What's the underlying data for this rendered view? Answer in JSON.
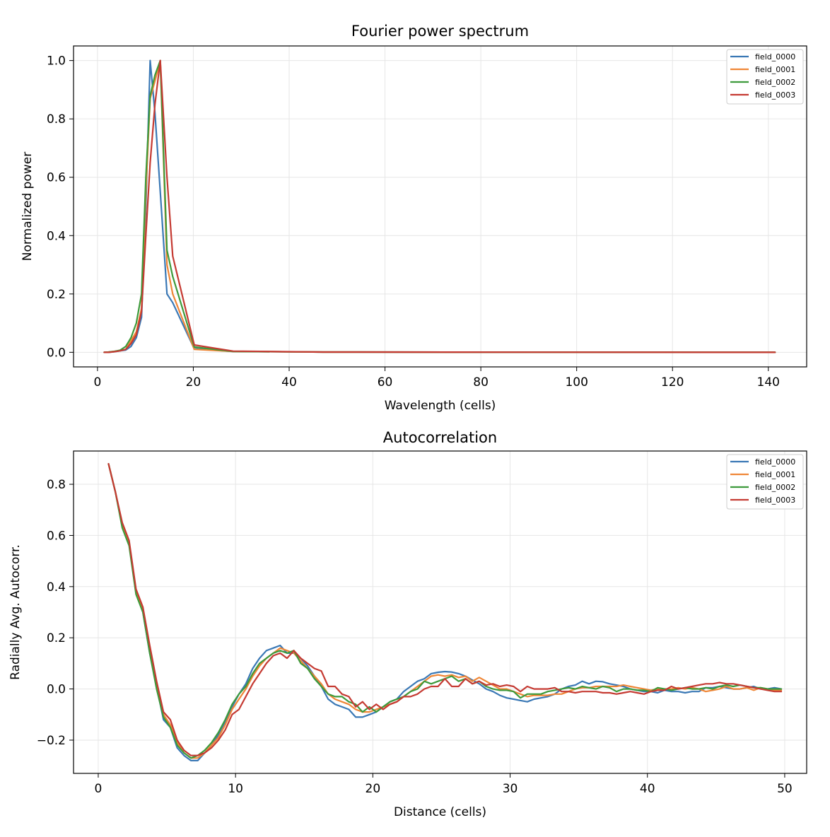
{
  "chart_data": [
    {
      "type": "line",
      "title": "Fourier power spectrum",
      "xlabel": "Wavelength (cells)",
      "ylabel": "Normalized power",
      "xlim": [
        -5,
        148
      ],
      "ylim": [
        -0.05,
        1.05
      ],
      "xticks": [
        0,
        20,
        40,
        60,
        80,
        100,
        120,
        140
      ],
      "yticks": [
        0.0,
        0.2,
        0.4,
        0.6,
        0.8,
        1.0
      ],
      "ytick_labels": [
        "0.0",
        "0.2",
        "0.4",
        "0.6",
        "0.8",
        "1.0"
      ],
      "grid": true,
      "legend_position": "top-right",
      "x": [
        1.4,
        2.3,
        3.5,
        4.7,
        5.9,
        7.0,
        8.1,
        9.2,
        10.1,
        11.0,
        12.0,
        13.1,
        14.5,
        15.7,
        20.2,
        28.3,
        47.1,
        141.4
      ],
      "series": [
        {
          "name": "field_0000",
          "color": "#3a78b5",
          "values": [
            0.0,
            0.0,
            0.002,
            0.005,
            0.008,
            0.02,
            0.05,
            0.12,
            0.5,
            1.0,
            0.82,
            0.55,
            0.2,
            0.17,
            0.012,
            0.003,
            0.001,
            0.0
          ]
        },
        {
          "name": "field_0001",
          "color": "#ef8636",
          "values": [
            0.0,
            0.001,
            0.003,
            0.006,
            0.01,
            0.04,
            0.07,
            0.15,
            0.55,
            0.87,
            0.93,
            1.0,
            0.3,
            0.2,
            0.01,
            0.003,
            0.001,
            0.0
          ]
        },
        {
          "name": "field_0002",
          "color": "#3d9a3b",
          "values": [
            0.0,
            0.001,
            0.003,
            0.007,
            0.02,
            0.05,
            0.1,
            0.2,
            0.6,
            0.88,
            0.95,
            1.0,
            0.35,
            0.26,
            0.018,
            0.003,
            0.001,
            0.0
          ]
        },
        {
          "name": "field_0003",
          "color": "#c53a32",
          "values": [
            0.0,
            0.0,
            0.002,
            0.005,
            0.01,
            0.03,
            0.06,
            0.14,
            0.4,
            0.65,
            0.85,
            1.0,
            0.6,
            0.33,
            0.025,
            0.004,
            0.001,
            0.0
          ]
        }
      ]
    },
    {
      "type": "line",
      "title": "Autocorrelation",
      "xlabel": "Distance (cells)",
      "ylabel": "Radially Avg. Autocorr.",
      "xlim": [
        -1.8,
        51.6
      ],
      "ylim": [
        -0.33,
        0.93
      ],
      "xticks": [
        0,
        10,
        20,
        30,
        40,
        50
      ],
      "yticks": [
        -0.2,
        0.0,
        0.2,
        0.4,
        0.6,
        0.8
      ],
      "ytick_labels": [
        "−0.2",
        "0.0",
        "0.2",
        "0.4",
        "0.6",
        "0.8"
      ],
      "grid": true,
      "legend_position": "top-right",
      "x": [
        0.75,
        1.25,
        1.75,
        2.25,
        2.75,
        3.25,
        3.75,
        4.25,
        4.75,
        5.25,
        5.75,
        6.25,
        6.75,
        7.25,
        7.75,
        8.25,
        8.75,
        9.25,
        9.75,
        10.25,
        10.75,
        11.25,
        11.75,
        12.25,
        12.75,
        13.25,
        13.75,
        14.25,
        14.75,
        15.25,
        15.75,
        16.25,
        16.75,
        17.25,
        17.75,
        18.25,
        18.75,
        19.25,
        19.75,
        20.25,
        20.75,
        21.25,
        21.75,
        22.25,
        22.75,
        23.25,
        23.75,
        24.25,
        24.75,
        25.25,
        25.75,
        26.25,
        26.75,
        27.25,
        27.75,
        28.25,
        28.75,
        29.25,
        29.75,
        30.25,
        30.75,
        31.25,
        31.75,
        32.25,
        32.75,
        33.25,
        33.75,
        34.25,
        34.75,
        35.25,
        35.75,
        36.25,
        36.75,
        37.25,
        37.75,
        38.25,
        38.75,
        39.25,
        39.75,
        40.25,
        40.75,
        41.25,
        41.75,
        42.25,
        42.75,
        43.25,
        43.75,
        44.25,
        44.75,
        45.25,
        45.75,
        46.25,
        46.75,
        47.25,
        47.75,
        48.25,
        48.75,
        49.25,
        49.75
      ],
      "series": [
        {
          "name": "field_0000",
          "color": "#3a78b5",
          "values": [
            0.88,
            0.77,
            0.64,
            0.57,
            0.38,
            0.3,
            0.14,
            0.01,
            -0.12,
            -0.15,
            -0.23,
            -0.26,
            -0.28,
            -0.28,
            -0.25,
            -0.22,
            -0.18,
            -0.13,
            -0.07,
            -0.02,
            0.02,
            0.08,
            0.12,
            0.15,
            0.16,
            0.17,
            0.14,
            0.14,
            0.12,
            0.09,
            0.05,
            0.01,
            -0.04,
            -0.06,
            -0.07,
            -0.08,
            -0.11,
            -0.11,
            -0.1,
            -0.09,
            -0.07,
            -0.05,
            -0.04,
            -0.01,
            0.01,
            0.03,
            0.04,
            0.06,
            0.065,
            0.068,
            0.066,
            0.06,
            0.05,
            0.035,
            0.02,
            0.0,
            -0.01,
            -0.025,
            -0.035,
            -0.04,
            -0.045,
            -0.05,
            -0.04,
            -0.035,
            -0.03,
            -0.02,
            0.0,
            0.01,
            0.015,
            0.03,
            0.02,
            0.03,
            0.028,
            0.02,
            0.015,
            0.01,
            0.0,
            -0.005,
            -0.01,
            -0.01,
            -0.015,
            -0.005,
            -0.01,
            -0.01,
            -0.015,
            -0.01,
            -0.01,
            0.005,
            0.005,
            0.01,
            0.005,
            0.0,
            0.0,
            0.005,
            0.01,
            0.0,
            0.0,
            0.005,
            0.0
          ]
        },
        {
          "name": "field_0001",
          "color": "#ef8636",
          "values": [
            0.88,
            0.77,
            0.64,
            0.57,
            0.38,
            0.31,
            0.15,
            0.02,
            -0.1,
            -0.14,
            -0.21,
            -0.25,
            -0.27,
            -0.27,
            -0.25,
            -0.22,
            -0.19,
            -0.14,
            -0.08,
            -0.04,
            0.0,
            0.05,
            0.09,
            0.12,
            0.14,
            0.16,
            0.15,
            0.14,
            0.11,
            0.08,
            0.05,
            0.02,
            -0.02,
            -0.04,
            -0.05,
            -0.06,
            -0.08,
            -0.09,
            -0.09,
            -0.08,
            -0.07,
            -0.06,
            -0.05,
            -0.03,
            -0.01,
            0.01,
            0.03,
            0.05,
            0.055,
            0.05,
            0.055,
            0.045,
            0.05,
            0.03,
            0.045,
            0.03,
            0.015,
            0.0,
            0.0,
            -0.01,
            -0.02,
            -0.03,
            -0.025,
            -0.025,
            -0.025,
            -0.02,
            -0.02,
            -0.01,
            0.0,
            0.005,
            0.005,
            0.01,
            0.01,
            0.01,
            0.01,
            0.015,
            0.01,
            0.005,
            0.0,
            -0.005,
            0.0,
            0.0,
            0.0,
            0.005,
            0.0,
            0.005,
            0.0,
            -0.01,
            -0.005,
            0.0,
            0.01,
            0.0,
            0.0,
            0.005,
            -0.005,
            0.005,
            0.0,
            -0.005,
            -0.005
          ]
        },
        {
          "name": "field_0002",
          "color": "#3d9a3b",
          "values": [
            0.88,
            0.77,
            0.63,
            0.56,
            0.37,
            0.3,
            0.14,
            0.0,
            -0.11,
            -0.15,
            -0.22,
            -0.25,
            -0.27,
            -0.26,
            -0.24,
            -0.21,
            -0.17,
            -0.12,
            -0.06,
            -0.02,
            0.01,
            0.06,
            0.1,
            0.12,
            0.14,
            0.15,
            0.14,
            0.15,
            0.1,
            0.08,
            0.04,
            0.01,
            -0.02,
            -0.03,
            -0.03,
            -0.05,
            -0.06,
            -0.09,
            -0.07,
            -0.09,
            -0.07,
            -0.05,
            -0.04,
            -0.03,
            -0.01,
            0.0,
            0.03,
            0.02,
            0.03,
            0.04,
            0.05,
            0.03,
            0.04,
            0.02,
            0.03,
            0.01,
            0.0,
            -0.005,
            -0.005,
            -0.01,
            -0.035,
            -0.02,
            -0.02,
            -0.02,
            -0.01,
            -0.005,
            0.0,
            0.005,
            0.0,
            0.01,
            0.005,
            0.0,
            0.01,
            0.005,
            -0.01,
            0.0,
            0.0,
            -0.005,
            -0.005,
            -0.01,
            0.005,
            0.0,
            -0.005,
            0.0,
            0.005,
            0.0,
            0.0,
            0.005,
            0.0,
            0.01,
            0.015,
            0.01,
            0.015,
            0.01,
            0.005,
            0.005,
            0.0,
            0.0,
            0.0
          ]
        },
        {
          "name": "field_0003",
          "color": "#c53a32",
          "values": [
            0.88,
            0.77,
            0.65,
            0.58,
            0.39,
            0.32,
            0.17,
            0.03,
            -0.09,
            -0.12,
            -0.2,
            -0.24,
            -0.26,
            -0.26,
            -0.25,
            -0.23,
            -0.2,
            -0.16,
            -0.1,
            -0.08,
            -0.03,
            0.02,
            0.06,
            0.1,
            0.13,
            0.14,
            0.12,
            0.15,
            0.12,
            0.1,
            0.08,
            0.07,
            0.01,
            0.01,
            -0.02,
            -0.03,
            -0.07,
            -0.05,
            -0.08,
            -0.06,
            -0.08,
            -0.06,
            -0.05,
            -0.03,
            -0.03,
            -0.02,
            0.0,
            0.01,
            0.01,
            0.04,
            0.01,
            0.01,
            0.04,
            0.02,
            0.03,
            0.015,
            0.02,
            0.01,
            0.015,
            0.01,
            -0.01,
            0.01,
            0.0,
            0.0,
            0.0,
            0.005,
            -0.01,
            -0.01,
            -0.015,
            -0.01,
            -0.01,
            -0.01,
            -0.015,
            -0.015,
            -0.02,
            -0.015,
            -0.01,
            -0.015,
            -0.02,
            -0.01,
            -0.005,
            -0.005,
            0.01,
            0.0,
            0.005,
            0.01,
            0.015,
            0.02,
            0.02,
            0.025,
            0.02,
            0.02,
            0.015,
            0.01,
            0.005,
            0.0,
            -0.005,
            -0.01,
            -0.01
          ]
        }
      ]
    }
  ]
}
